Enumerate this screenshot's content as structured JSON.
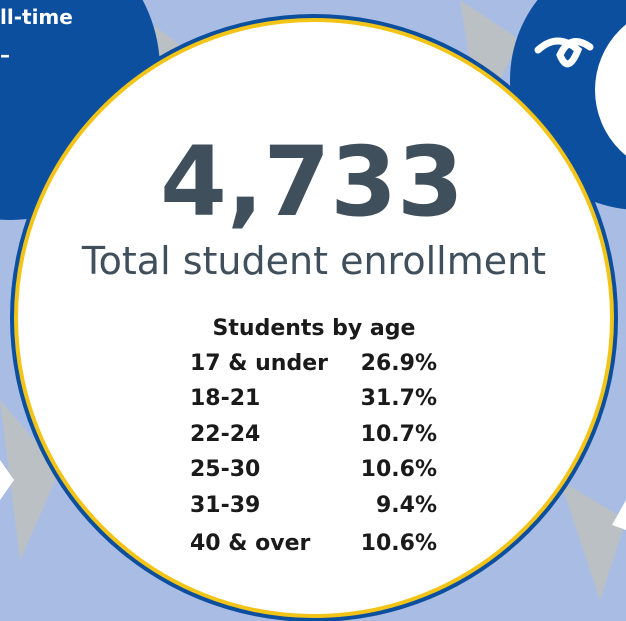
{
  "sidebar": {
    "lines": [
      "ll-time",
      "–"
    ]
  },
  "headline": {
    "value": "4,733",
    "label": "Total student enrollment"
  },
  "age_table": {
    "title": "Students by age",
    "rows": [
      [
        "17 & under",
        "26.9%"
      ],
      [
        "18-21",
        "31.7%"
      ],
      [
        "22-24",
        "10.7%"
      ],
      [
        "25-30",
        "10.6%"
      ],
      [
        "31-39",
        "9.4%"
      ],
      [
        "40 & over",
        "10.6%"
      ]
    ]
  }
}
